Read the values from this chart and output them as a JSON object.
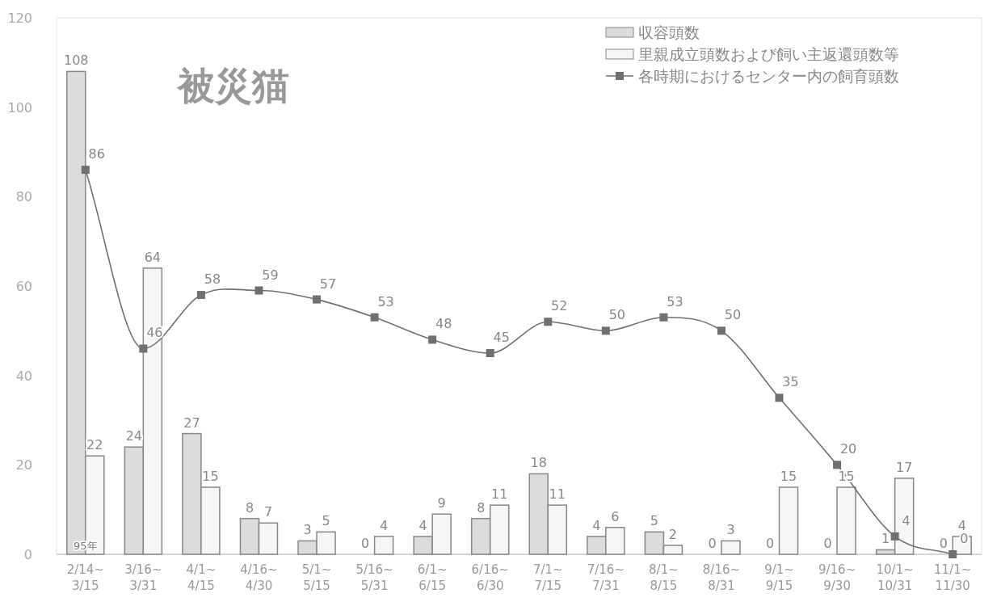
{
  "chart_data": {
    "type": "bar",
    "title": "被災猫",
    "categories": [
      "2/14~\n3/15",
      "3/16~\n3/31",
      "4/1~\n4/15",
      "4/16~\n4/30",
      "5/1~\n5/15",
      "5/16~\n5/31",
      "6/1~\n6/15",
      "6/16~\n6/30",
      "7/1~\n7/15",
      "7/16~\n7/31",
      "8/1~\n8/15",
      "8/16~\n8/31",
      "9/1~\n9/15",
      "9/16~\n9/30",
      "10/1~\n10/31",
      "11/1~\n11/30"
    ],
    "series": [
      {
        "name": "収容頭数",
        "color": "#dcdcdc",
        "values": [
          108,
          24,
          27,
          8,
          3,
          0,
          4,
          8,
          18,
          4,
          5,
          0,
          0,
          0,
          1,
          0
        ]
      },
      {
        "name": "里親成立頭数および飼い主返還頭数等",
        "color": "#f6f6f6",
        "values": [
          22,
          64,
          15,
          7,
          5,
          4,
          9,
          11,
          11,
          6,
          2,
          3,
          15,
          15,
          17,
          4
        ]
      },
      {
        "name": "各時期におけるセンター内の飼育頭数",
        "type": "line",
        "color": "#707070",
        "values": [
          86,
          46,
          58,
          59,
          57,
          53,
          48,
          45,
          52,
          50,
          53,
          50,
          35,
          20,
          4,
          0
        ]
      }
    ],
    "ylim": [
      0,
      120
    ],
    "yticks": [
      0,
      20,
      40,
      60,
      80,
      100,
      120
    ],
    "data_labels": true,
    "legend": "top right",
    "marker": "square",
    "grid": false,
    "annotations": [
      "95年"
    ]
  }
}
